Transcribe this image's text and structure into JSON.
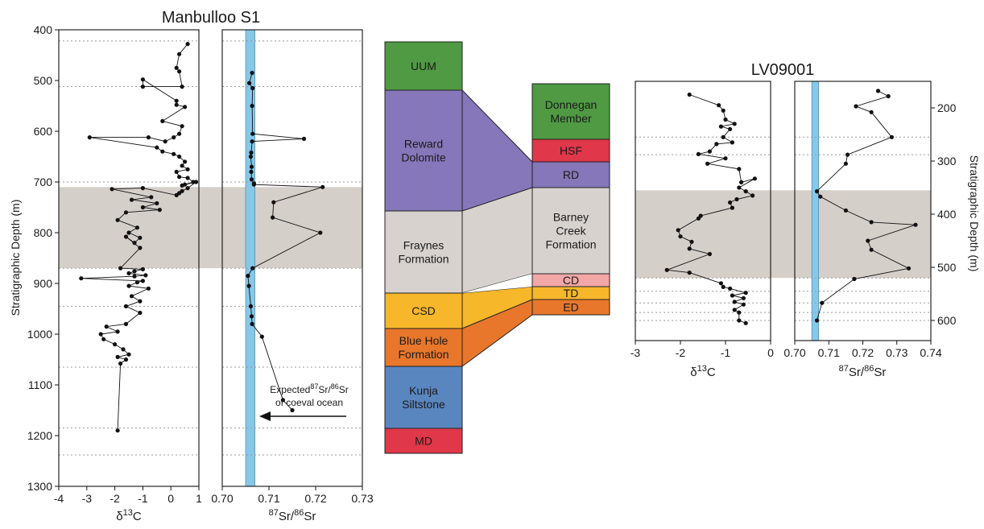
{
  "colors": {
    "shade": "#d5cfca",
    "ocean_band": "#89c7e6",
    "UUM": "#4f9a43",
    "RD": "#8577b9",
    "neutral": "#d8d2ce",
    "CSD": "#f7b72b",
    "BlueHole": "#e8772b",
    "Kunja": "#5a86c0",
    "MD": "#e0374a",
    "Donnegan": "#4f9a43",
    "HSF": "#e0374a",
    "CD": "#f2a7a7",
    "TD": "#f7b72b",
    "ED": "#e8772b"
  },
  "titles": {
    "left": "Manbulloo S1",
    "right": "LV09001"
  },
  "ylabels": {
    "left": "Stratigraphic Depth (m)",
    "right": "Stratigraphic Depth (m)"
  },
  "annotation": {
    "l1": "Expected",
    "sup1": "87",
    "m1": "Sr/",
    "sup2": "86",
    "m2": "Sr",
    "l2": "of coeval ocean"
  },
  "units": {
    "c13": {
      "d": "δ",
      "sup": "13",
      "b": "C"
    },
    "sr": {
      "sup1": "87",
      "a": "Sr/",
      "sup2": "86",
      "b": "Sr"
    }
  },
  "ticks": {
    "m_depth": [
      "400",
      "500",
      "600",
      "700",
      "800",
      "900",
      "1000",
      "1100",
      "1200",
      "1300"
    ],
    "m_c13": [
      "-4",
      "-3",
      "-2",
      "-1",
      "0",
      "1"
    ],
    "m_sr": [
      "0.70",
      "0.71",
      "0.72",
      "0.73"
    ],
    "l_depth": [
      "200",
      "300",
      "400",
      "500",
      "600"
    ],
    "l_c13": [
      "-3",
      "-2",
      "-1",
      "0"
    ],
    "l_sr": [
      "0.70",
      "0.71",
      "0.72",
      "0.73",
      "0.74"
    ]
  },
  "units_blocks": {
    "manbulloo": [
      {
        "key": "UUM",
        "lines": [
          "UUM"
        ],
        "color": "UUM"
      },
      {
        "key": "RD",
        "lines": [
          "Reward",
          "Dolomite"
        ],
        "color": "RD"
      },
      {
        "key": "FF",
        "lines": [
          "Fraynes",
          "Formation"
        ],
        "color": "neutral"
      },
      {
        "key": "CSD",
        "lines": [
          "CSD"
        ],
        "color": "CSD"
      },
      {
        "key": "BH",
        "lines": [
          "Blue Hole",
          "Formation"
        ],
        "color": "BlueHole"
      },
      {
        "key": "KS",
        "lines": [
          "Kunja",
          "Siltstone"
        ],
        "color": "Kunja"
      },
      {
        "key": "MD",
        "lines": [
          "MD"
        ],
        "color": "MD"
      }
    ],
    "lv": [
      {
        "key": "DM",
        "lines": [
          "Donnegan",
          "Member"
        ],
        "color": "Donnegan"
      },
      {
        "key": "HSF",
        "lines": [
          "HSF"
        ],
        "color": "HSF"
      },
      {
        "key": "RD2",
        "lines": [
          "RD"
        ],
        "color": "RD"
      },
      {
        "key": "BCF",
        "lines": [
          "Barney",
          "Creek",
          "Formation"
        ],
        "color": "neutral"
      },
      {
        "key": "CD",
        "lines": [
          "CD"
        ],
        "color": "CD"
      },
      {
        "key": "TD",
        "lines": [
          "TD"
        ],
        "color": "TD"
      },
      {
        "key": "ED",
        "lines": [
          "ED"
        ],
        "color": "ED"
      }
    ]
  },
  "chart_data": [
    {
      "type": "line",
      "title": "Manbulloo S1",
      "xlabel": "δ13C",
      "ylabel": "Stratigraphic Depth (m)",
      "xlim": [
        -4,
        1
      ],
      "ylim": [
        1300,
        400
      ],
      "shaded_interval": [
        710,
        870
      ],
      "series": [
        {
          "x": [
            0.6,
            0.3,
            0.2,
            0.3,
            0.4,
            -1.0,
            -1.0,
            0.2,
            0.2,
            0.5,
            -0.3,
            0.4,
            0.3,
            0.1,
            -0.2,
            -0.8,
            -2.9,
            -0.5,
            -0.3,
            0.1,
            0.3,
            0.5,
            0.4,
            0.6,
            0.2,
            0.3,
            0.6,
            0.8,
            0.5,
            0.4,
            0.9,
            0.6,
            0.4,
            0.3,
            0.2,
            -1.0,
            -2.1,
            -0.7,
            -1.4,
            -0.5,
            -1.0,
            -0.4,
            -1.6,
            -1.9,
            -1.2,
            -1.5,
            -1.1,
            -1.3,
            -1.6,
            -1.1,
            -1.8,
            -1.0,
            -1.3,
            -1.5,
            -0.9,
            -1.3,
            -3.2,
            -1.0,
            -1.2,
            -1.5,
            -0.8,
            -1.4,
            -1.1,
            -1.6,
            -1.1,
            -1.6,
            -2.3,
            -1.9,
            -2.5,
            -2.4,
            -2.0,
            -1.7,
            -1.5,
            -1.9,
            -1.6,
            -1.8,
            -1.9
          ],
          "y": [
            428,
            448,
            475,
            482,
            512,
            512,
            498,
            540,
            548,
            552,
            580,
            590,
            605,
            612,
            620,
            612,
            612,
            632,
            640,
            645,
            650,
            660,
            668,
            675,
            680,
            690,
            692,
            700,
            705,
            707,
            700,
            712,
            718,
            722,
            726,
            712,
            714,
            730,
            735,
            742,
            750,
            755,
            760,
            775,
            790,
            800,
            810,
            820,
            808,
            830,
            870,
            872,
            876,
            880,
            884,
            886,
            890,
            895,
            898,
            905,
            910,
            925,
            935,
            945,
            958,
            980,
            985,
            995,
            1000,
            1010,
            1020,
            1030,
            1040,
            1045,
            1050,
            1058,
            1190
          ]
        }
      ]
    },
    {
      "type": "line",
      "title": "Manbulloo S1",
      "xlabel": "87Sr/86Sr",
      "ylabel": "Stratigraphic Depth (m)",
      "xlim": [
        0.7,
        0.73
      ],
      "ylim": [
        1300,
        400
      ],
      "shaded_interval": [
        710,
        870
      ],
      "expected_ocean_band": [
        0.705,
        0.707
      ],
      "series": [
        {
          "x": [
            0.7064,
            0.7058,
            0.7065,
            0.7064,
            0.7065,
            0.7175,
            0.7064,
            0.7062,
            0.7061,
            0.7063,
            0.7062,
            0.7063,
            0.7068,
            0.7068,
            0.7215,
            0.711,
            0.7108,
            0.721,
            0.7065,
            0.7055,
            0.7057,
            0.7061,
            0.7063,
            0.7064,
            0.7085,
            0.713,
            0.715
          ],
          "y": [
            485,
            505,
            515,
            550,
            605,
            615,
            620,
            642,
            650,
            670,
            680,
            695,
            703,
            705,
            710,
            740,
            770,
            800,
            870,
            885,
            905,
            945,
            965,
            980,
            1005,
            1130,
            1150
          ]
        }
      ]
    },
    {
      "type": "line",
      "title": "LV09001",
      "xlabel": "δ13C",
      "ylabel": "Stratigraphic Depth (m)",
      "xlim": [
        -3,
        0
      ],
      "ylim": [
        150,
        650
      ],
      "shaded_interval": [
        355,
        520
      ],
      "series": [
        {
          "x": [
            -1.8,
            -1.15,
            -1.05,
            -1.0,
            -0.8,
            -1.1,
            -0.9,
            -1.05,
            -0.85,
            -1.2,
            -1.35,
            -1.6,
            -1.0,
            -1.4,
            -0.7,
            -0.65,
            -0.35,
            -0.7,
            -0.55,
            -0.4,
            -0.75,
            -0.9,
            -0.85,
            -1.55,
            -1.6,
            -2.05,
            -2.0,
            -1.75,
            -1.8,
            -1.35,
            -2.3,
            -1.8,
            -1.1,
            -1.05,
            -0.9,
            -0.55,
            -0.85,
            -0.6,
            -0.8,
            -0.6,
            -0.8,
            -0.7,
            -0.7,
            -0.55
          ],
          "y": [
            175,
            195,
            205,
            222,
            230,
            235,
            240,
            255,
            265,
            268,
            282,
            287,
            295,
            305,
            315,
            340,
            333,
            350,
            357,
            365,
            372,
            378,
            388,
            403,
            408,
            430,
            442,
            452,
            465,
            475,
            505,
            510,
            530,
            537,
            540,
            548,
            553,
            558,
            565,
            570,
            580,
            585,
            600,
            605
          ]
        }
      ]
    },
    {
      "type": "line",
      "title": "LV09001",
      "xlabel": "87Sr/86Sr",
      "ylabel": "Stratigraphic Depth (m)",
      "xlim": [
        0.7,
        0.74
      ],
      "ylim": [
        150,
        650
      ],
      "shaded_interval": [
        355,
        520
      ],
      "expected_ocean_band": [
        0.705,
        0.707
      ],
      "series": [
        {
          "x": [
            0.7245,
            0.7275,
            0.718,
            0.7225,
            0.7285,
            0.7155,
            0.715,
            0.7065,
            0.7075,
            0.715,
            0.7225,
            0.7355,
            0.7215,
            0.7225,
            0.7335,
            0.7175,
            0.708,
            0.7065
          ],
          "y": [
            168,
            178,
            197,
            208,
            255,
            288,
            305,
            357,
            367,
            393,
            415,
            420,
            450,
            467,
            502,
            522,
            567,
            600
          ]
        }
      ]
    }
  ]
}
